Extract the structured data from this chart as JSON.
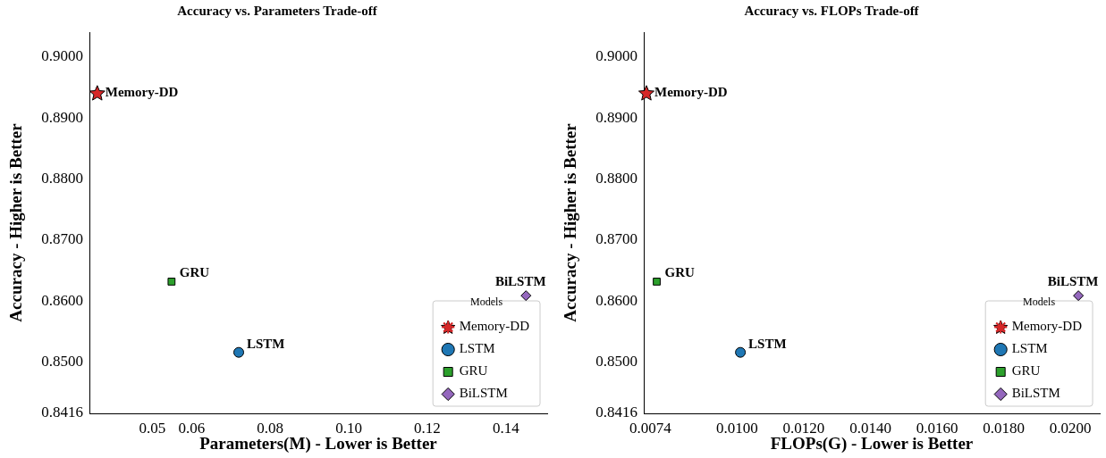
{
  "chart_data": [
    {
      "type": "scatter",
      "title": "Accuracy vs. Parameters Trade-off",
      "xlabel": "Parameters(M) - Lower is Better",
      "ylabel": "Accuracy - Higher is Better",
      "legend_title": "Models",
      "legend": "bottom right",
      "grid": false,
      "xlim": [
        0.034,
        0.1505
      ],
      "xticks": [
        0.05,
        0.06,
        0.08,
        {
          "value": 0.1,
          "label": "0.10"
        },
        0.12,
        0.14
      ],
      "ylim": [
        0.8416,
        0.9041
      ],
      "yticks": [
        0.8416,
        {
          "value": 0.85,
          "label": "0.8500"
        },
        {
          "value": 0.86,
          "label": "0.8600"
        },
        {
          "value": 0.87,
          "label": "0.8700"
        },
        {
          "value": 0.88,
          "label": "0.8800"
        },
        {
          "value": 0.89,
          "label": "0.8900"
        },
        {
          "value": 0.9,
          "label": "0.9000"
        }
      ],
      "series": [
        {
          "name": "Memory-DD",
          "color": "#d62728",
          "marker": "star",
          "x": [
            0.036
          ],
          "values": [
            0.8941
          ]
        },
        {
          "name": "LSTM",
          "color": "#1f77b4",
          "marker": "circle",
          "x": [
            0.072
          ],
          "values": [
            0.8516
          ]
        },
        {
          "name": "GRU",
          "color": "#2ca02c",
          "marker": "square",
          "x": [
            0.0549
          ],
          "values": [
            0.8632
          ]
        },
        {
          "name": "BiLSTM",
          "color": "#9467bd",
          "marker": "diamond",
          "x": [
            0.1451
          ],
          "values": [
            0.8609
          ]
        }
      ]
    },
    {
      "type": "scatter",
      "title": "Accuracy vs. FLOPs Trade-off",
      "xlabel": "FLOPs(G) - Lower is Better",
      "ylabel": "Accuracy - Higher is Better",
      "legend_title": "Models",
      "legend": "bottom right",
      "grid": false,
      "xlim": [
        0.0072,
        0.02088
      ],
      "xticks": [
        0.0074,
        {
          "value": 0.01,
          "label": "0.0100"
        },
        {
          "value": 0.012,
          "label": "0.0120"
        },
        {
          "value": 0.014,
          "label": "0.0140"
        },
        {
          "value": 0.016,
          "label": "0.0160"
        },
        {
          "value": 0.018,
          "label": "0.0180"
        },
        {
          "value": 0.02,
          "label": "0.0200"
        }
      ],
      "ylim": [
        0.8416,
        0.9041
      ],
      "yticks": [
        0.8416,
        {
          "value": 0.85,
          "label": "0.8500"
        },
        {
          "value": 0.86,
          "label": "0.8600"
        },
        {
          "value": 0.87,
          "label": "0.8700"
        },
        {
          "value": 0.88,
          "label": "0.8800"
        },
        {
          "value": 0.89,
          "label": "0.8900"
        },
        {
          "value": 0.9,
          "label": "0.9000"
        }
      ],
      "series": [
        {
          "name": "Memory-DD",
          "color": "#d62728",
          "marker": "star",
          "x": [
            0.00728
          ],
          "values": [
            0.8941
          ]
        },
        {
          "name": "LSTM",
          "color": "#1f77b4",
          "marker": "circle",
          "x": [
            0.0101
          ],
          "values": [
            0.8516
          ]
        },
        {
          "name": "GRU",
          "color": "#2ca02c",
          "marker": "square",
          "x": [
            0.00759
          ],
          "values": [
            0.8632
          ]
        },
        {
          "name": "BiLSTM",
          "color": "#9467bd",
          "marker": "diamond",
          "x": [
            0.02024
          ],
          "values": [
            0.8609
          ]
        }
      ]
    }
  ]
}
